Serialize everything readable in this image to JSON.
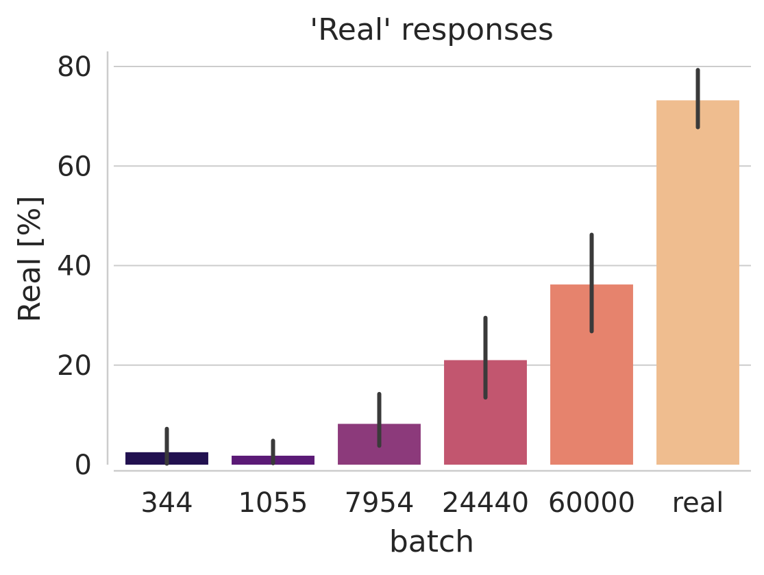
{
  "chart_data": {
    "type": "bar",
    "title": "'Real' responses",
    "xlabel": "batch",
    "ylabel": "Real [%]",
    "categories": [
      "344",
      "1055",
      "7954",
      "24440",
      "60000",
      "real"
    ],
    "values": [
      2.5,
      1.8,
      8.2,
      21.0,
      36.2,
      73.2
    ],
    "error_bars": [
      [
        0.2,
        7.2
      ],
      [
        0.3,
        4.8
      ],
      [
        3.8,
        14.2
      ],
      [
        13.5,
        29.5
      ],
      [
        26.8,
        46.2
      ],
      [
        67.8,
        79.3
      ]
    ],
    "bar_colors": [
      "#221150",
      "#5b1a76",
      "#8c3a7b",
      "#c2566f",
      "#e6836d",
      "#efbd8f"
    ],
    "error_bar_color": "#3a3a3a",
    "ylim": [
      0,
      80
    ],
    "yticks": [
      0,
      20,
      40,
      60,
      80
    ],
    "grid": "horizontal",
    "legend": "none"
  }
}
